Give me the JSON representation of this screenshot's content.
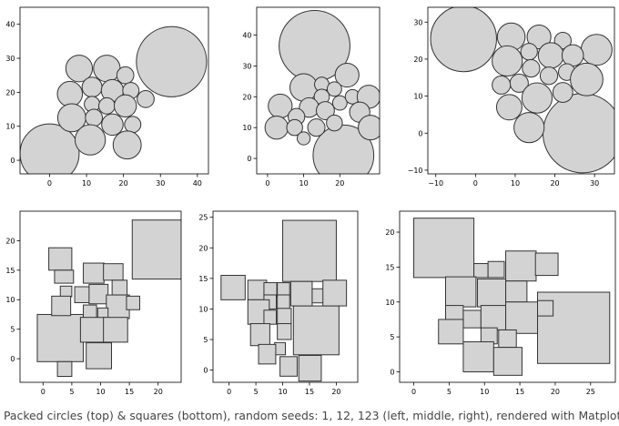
{
  "caption": "Packed circles (top) & squares (bottom), random seeds: 1, 12, 123 (left, middle, right), rendered with Matplotlib",
  "colors": {
    "shape_fill": "#d3d3d3",
    "shape_stroke": "#333333",
    "axes": "#000000"
  },
  "chart_data": [
    {
      "type": "scatter",
      "shape": "circle",
      "xlim": [
        -8,
        43
      ],
      "ylim": [
        -4,
        45
      ],
      "xticks": [
        0,
        10,
        20,
        30,
        40
      ],
      "yticks": [
        0,
        10,
        20,
        30,
        40
      ],
      "items": [
        {
          "x": 0,
          "y": 2,
          "r": 8
        },
        {
          "x": 33,
          "y": 29,
          "r": 9.5
        },
        {
          "x": 8,
          "y": 27,
          "r": 3.6
        },
        {
          "x": 15.5,
          "y": 27,
          "r": 3.6
        },
        {
          "x": 20.5,
          "y": 25,
          "r": 2.3
        },
        {
          "x": 5.5,
          "y": 19.5,
          "r": 3.4
        },
        {
          "x": 11.5,
          "y": 21.5,
          "r": 2.7
        },
        {
          "x": 17,
          "y": 20.5,
          "r": 3
        },
        {
          "x": 22,
          "y": 20.5,
          "r": 2.2
        },
        {
          "x": 26,
          "y": 18,
          "r": 2.3
        },
        {
          "x": 11.5,
          "y": 16.5,
          "r": 2.1
        },
        {
          "x": 15.5,
          "y": 16,
          "r": 2.2
        },
        {
          "x": 20.5,
          "y": 16,
          "r": 3
        },
        {
          "x": 6,
          "y": 12.5,
          "r": 3.8
        },
        {
          "x": 12,
          "y": 12.5,
          "r": 2.3
        },
        {
          "x": 17,
          "y": 10.5,
          "r": 2.9
        },
        {
          "x": 22.5,
          "y": 10.5,
          "r": 2.2
        },
        {
          "x": 11,
          "y": 6,
          "r": 4.1
        },
        {
          "x": 21,
          "y": 4.5,
          "r": 3.8
        }
      ]
    },
    {
      "type": "scatter",
      "shape": "circle",
      "xlim": [
        -3,
        31
      ],
      "ylim": [
        -5,
        49
      ],
      "xticks": [
        0,
        10,
        20
      ],
      "yticks": [
        0,
        10,
        20,
        30,
        40
      ],
      "items": [
        {
          "x": 13,
          "y": 36.5,
          "r": 9.8
        },
        {
          "x": 21,
          "y": 1,
          "r": 8.4
        },
        {
          "x": 22,
          "y": 27,
          "r": 3.3
        },
        {
          "x": 10,
          "y": 23,
          "r": 3.8
        },
        {
          "x": 15,
          "y": 24,
          "r": 2
        },
        {
          "x": 18.5,
          "y": 22.5,
          "r": 2
        },
        {
          "x": 15,
          "y": 20,
          "r": 2.1
        },
        {
          "x": 20,
          "y": 18,
          "r": 2
        },
        {
          "x": 23.5,
          "y": 20,
          "r": 2
        },
        {
          "x": 28,
          "y": 20,
          "r": 3.2
        },
        {
          "x": 3.5,
          "y": 17,
          "r": 3.3
        },
        {
          "x": 11.5,
          "y": 16.5,
          "r": 2.7
        },
        {
          "x": 16,
          "y": 15.5,
          "r": 2.5
        },
        {
          "x": 25.5,
          "y": 15,
          "r": 2.8
        },
        {
          "x": 8,
          "y": 13.5,
          "r": 2.3
        },
        {
          "x": 2.5,
          "y": 10,
          "r": 3.2
        },
        {
          "x": 7.5,
          "y": 10,
          "r": 2.2
        },
        {
          "x": 13.5,
          "y": 10,
          "r": 2.4
        },
        {
          "x": 18.5,
          "y": 11.5,
          "r": 2.2
        },
        {
          "x": 28.5,
          "y": 10,
          "r": 3.4
        },
        {
          "x": 10,
          "y": 6.5,
          "r": 1.8
        }
      ]
    },
    {
      "type": "scatter",
      "shape": "circle",
      "xlim": [
        -12,
        35
      ],
      "ylim": [
        -11,
        34
      ],
      "xticks": [
        -10,
        0,
        10,
        20,
        30
      ],
      "yticks": [
        -10,
        0,
        10,
        20,
        30
      ],
      "items": [
        {
          "x": -3,
          "y": 25.5,
          "r": 8.3
        },
        {
          "x": 27,
          "y": 0,
          "r": 10
        },
        {
          "x": 9,
          "y": 26,
          "r": 3.5
        },
        {
          "x": 16,
          "y": 26,
          "r": 3
        },
        {
          "x": 22,
          "y": 25,
          "r": 2.1
        },
        {
          "x": 30.5,
          "y": 22.5,
          "r": 3.9
        },
        {
          "x": 13.5,
          "y": 22,
          "r": 2.1
        },
        {
          "x": 8,
          "y": 19.5,
          "r": 3.8
        },
        {
          "x": 19,
          "y": 21,
          "r": 3.2
        },
        {
          "x": 24.5,
          "y": 21,
          "r": 2.7
        },
        {
          "x": 14,
          "y": 17.5,
          "r": 2.2
        },
        {
          "x": 23,
          "y": 16.5,
          "r": 2.1
        },
        {
          "x": 11,
          "y": 13.5,
          "r": 2.3
        },
        {
          "x": 18.5,
          "y": 15.5,
          "r": 2.2
        },
        {
          "x": 28,
          "y": 14.5,
          "r": 4.1
        },
        {
          "x": 6.5,
          "y": 13,
          "r": 2.3
        },
        {
          "x": 15.5,
          "y": 9.5,
          "r": 3.8
        },
        {
          "x": 22,
          "y": 11,
          "r": 2.5
        },
        {
          "x": 8.5,
          "y": 7,
          "r": 3.2
        },
        {
          "x": 13.5,
          "y": 1.5,
          "r": 3.8
        }
      ]
    },
    {
      "type": "scatter",
      "shape": "square",
      "xlim": [
        -4,
        24
      ],
      "ylim": [
        -4,
        25
      ],
      "xticks": [
        0,
        5,
        10,
        15,
        20
      ],
      "yticks": [
        0,
        5,
        10,
        15,
        20
      ],
      "items": [
        {
          "x": 15.5,
          "y": 13.5,
          "w": 10,
          "h": 10
        },
        {
          "x": -1,
          "y": -0.5,
          "w": 8,
          "h": 8
        },
        {
          "x": 1,
          "y": 15,
          "w": 4,
          "h": 3.8
        },
        {
          "x": 2,
          "y": 12.8,
          "w": 3.3,
          "h": 2.2
        },
        {
          "x": 3,
          "y": 10.5,
          "w": 2,
          "h": 1.8
        },
        {
          "x": 5.5,
          "y": 9.5,
          "w": 2.7,
          "h": 2.7
        },
        {
          "x": 7,
          "y": 12.8,
          "w": 3.6,
          "h": 3.4
        },
        {
          "x": 10.5,
          "y": 13.3,
          "w": 3.4,
          "h": 2.8
        },
        {
          "x": 12,
          "y": 10.8,
          "w": 2.6,
          "h": 2.5
        },
        {
          "x": 1.5,
          "y": 7.3,
          "w": 3.3,
          "h": 3.3
        },
        {
          "x": 8,
          "y": 9.3,
          "w": 3.3,
          "h": 3.3
        },
        {
          "x": 11,
          "y": 6.8,
          "w": 4,
          "h": 4
        },
        {
          "x": 14.5,
          "y": 8.3,
          "w": 2.3,
          "h": 2.3
        },
        {
          "x": 7,
          "y": 6.8,
          "w": 2.3,
          "h": 2.3
        },
        {
          "x": 9.5,
          "y": 6.8,
          "w": 1.8,
          "h": 1.8
        },
        {
          "x": 6.5,
          "y": 2.8,
          "w": 4.2,
          "h": 4.2
        },
        {
          "x": 10.5,
          "y": 2.8,
          "w": 4.2,
          "h": 4.2
        },
        {
          "x": 7.5,
          "y": -1.7,
          "w": 4.4,
          "h": 4.4
        },
        {
          "x": 2.5,
          "y": -3,
          "w": 2.5,
          "h": 2.5
        }
      ]
    },
    {
      "type": "scatter",
      "shape": "square",
      "xlim": [
        -3,
        24
      ],
      "ylim": [
        -2,
        26
      ],
      "xticks": [
        0,
        5,
        10,
        15,
        20
      ],
      "yticks": [
        0,
        5,
        10,
        15,
        20,
        25
      ],
      "items": [
        {
          "x": 10,
          "y": 14.5,
          "w": 10,
          "h": 10
        },
        {
          "x": 12,
          "y": 2.5,
          "w": 8.5,
          "h": 8
        },
        {
          "x": -1.5,
          "y": 11.5,
          "w": 4.5,
          "h": 4
        },
        {
          "x": 3.5,
          "y": 11.5,
          "w": 3.5,
          "h": 3.2
        },
        {
          "x": 6.5,
          "y": 12,
          "w": 2.4,
          "h": 2.3
        },
        {
          "x": 9,
          "y": 12,
          "w": 2.3,
          "h": 2.3
        },
        {
          "x": 11.5,
          "y": 10.5,
          "w": 4,
          "h": 4
        },
        {
          "x": 15.5,
          "y": 11,
          "w": 2.3,
          "h": 2.3
        },
        {
          "x": 17.5,
          "y": 10.5,
          "w": 4.4,
          "h": 4.2
        },
        {
          "x": 6.5,
          "y": 10,
          "w": 2.3,
          "h": 2.3
        },
        {
          "x": 9,
          "y": 10,
          "w": 2.3,
          "h": 2.3
        },
        {
          "x": 3.5,
          "y": 7.5,
          "w": 4,
          "h": 4
        },
        {
          "x": 6.5,
          "y": 7.5,
          "w": 2.3,
          "h": 2.3
        },
        {
          "x": 9,
          "y": 7.5,
          "w": 2.6,
          "h": 2.6
        },
        {
          "x": 4,
          "y": 4,
          "w": 3.6,
          "h": 3.6
        },
        {
          "x": 9,
          "y": 5,
          "w": 2.6,
          "h": 2.6
        },
        {
          "x": 8.5,
          "y": 2.5,
          "w": 2,
          "h": 2
        },
        {
          "x": 5.5,
          "y": 1,
          "w": 3.2,
          "h": 3.2
        },
        {
          "x": 9.5,
          "y": -1,
          "w": 3.2,
          "h": 3.2
        },
        {
          "x": 13,
          "y": -1.8,
          "w": 4.2,
          "h": 4.2
        }
      ]
    },
    {
      "type": "scatter",
      "shape": "square",
      "xlim": [
        -2,
        28.5
      ],
      "ylim": [
        -1.5,
        23
      ],
      "xticks": [
        0,
        5,
        10,
        15,
        20,
        25
      ],
      "yticks": [
        0,
        5,
        10,
        15,
        20
      ],
      "items": [
        {
          "x": 0,
          "y": 13.5,
          "w": 8.5,
          "h": 8.5
        },
        {
          "x": 17.5,
          "y": 1.2,
          "w": 10.2,
          "h": 10.2
        },
        {
          "x": 8.5,
          "y": 13.5,
          "w": 2,
          "h": 2
        },
        {
          "x": 10.5,
          "y": 13.5,
          "w": 2.3,
          "h": 2.3
        },
        {
          "x": 13,
          "y": 13,
          "w": 4.3,
          "h": 4.3
        },
        {
          "x": 17.2,
          "y": 13.8,
          "w": 3.2,
          "h": 3.2
        },
        {
          "x": 4.5,
          "y": 9.3,
          "w": 4.3,
          "h": 4.3
        },
        {
          "x": 9,
          "y": 9.3,
          "w": 4,
          "h": 4
        },
        {
          "x": 13,
          "y": 10,
          "w": 3,
          "h": 3
        },
        {
          "x": 4.5,
          "y": 7,
          "w": 2.5,
          "h": 2.5
        },
        {
          "x": 7,
          "y": 6.3,
          "w": 2.5,
          "h": 2.5
        },
        {
          "x": 9.5,
          "y": 6,
          "w": 3.5,
          "h": 3.5
        },
        {
          "x": 13,
          "y": 5.5,
          "w": 4.5,
          "h": 4.5
        },
        {
          "x": 17.5,
          "y": 8,
          "w": 2.2,
          "h": 2.2
        },
        {
          "x": 3.5,
          "y": 4,
          "w": 3.5,
          "h": 3.5
        },
        {
          "x": 9.5,
          "y": 4,
          "w": 2.3,
          "h": 2.3
        },
        {
          "x": 12,
          "y": 3.5,
          "w": 2.5,
          "h": 2.5
        },
        {
          "x": 7,
          "y": 0,
          "w": 4.3,
          "h": 4.3
        },
        {
          "x": 11.3,
          "y": -0.5,
          "w": 4,
          "h": 4
        }
      ]
    }
  ]
}
